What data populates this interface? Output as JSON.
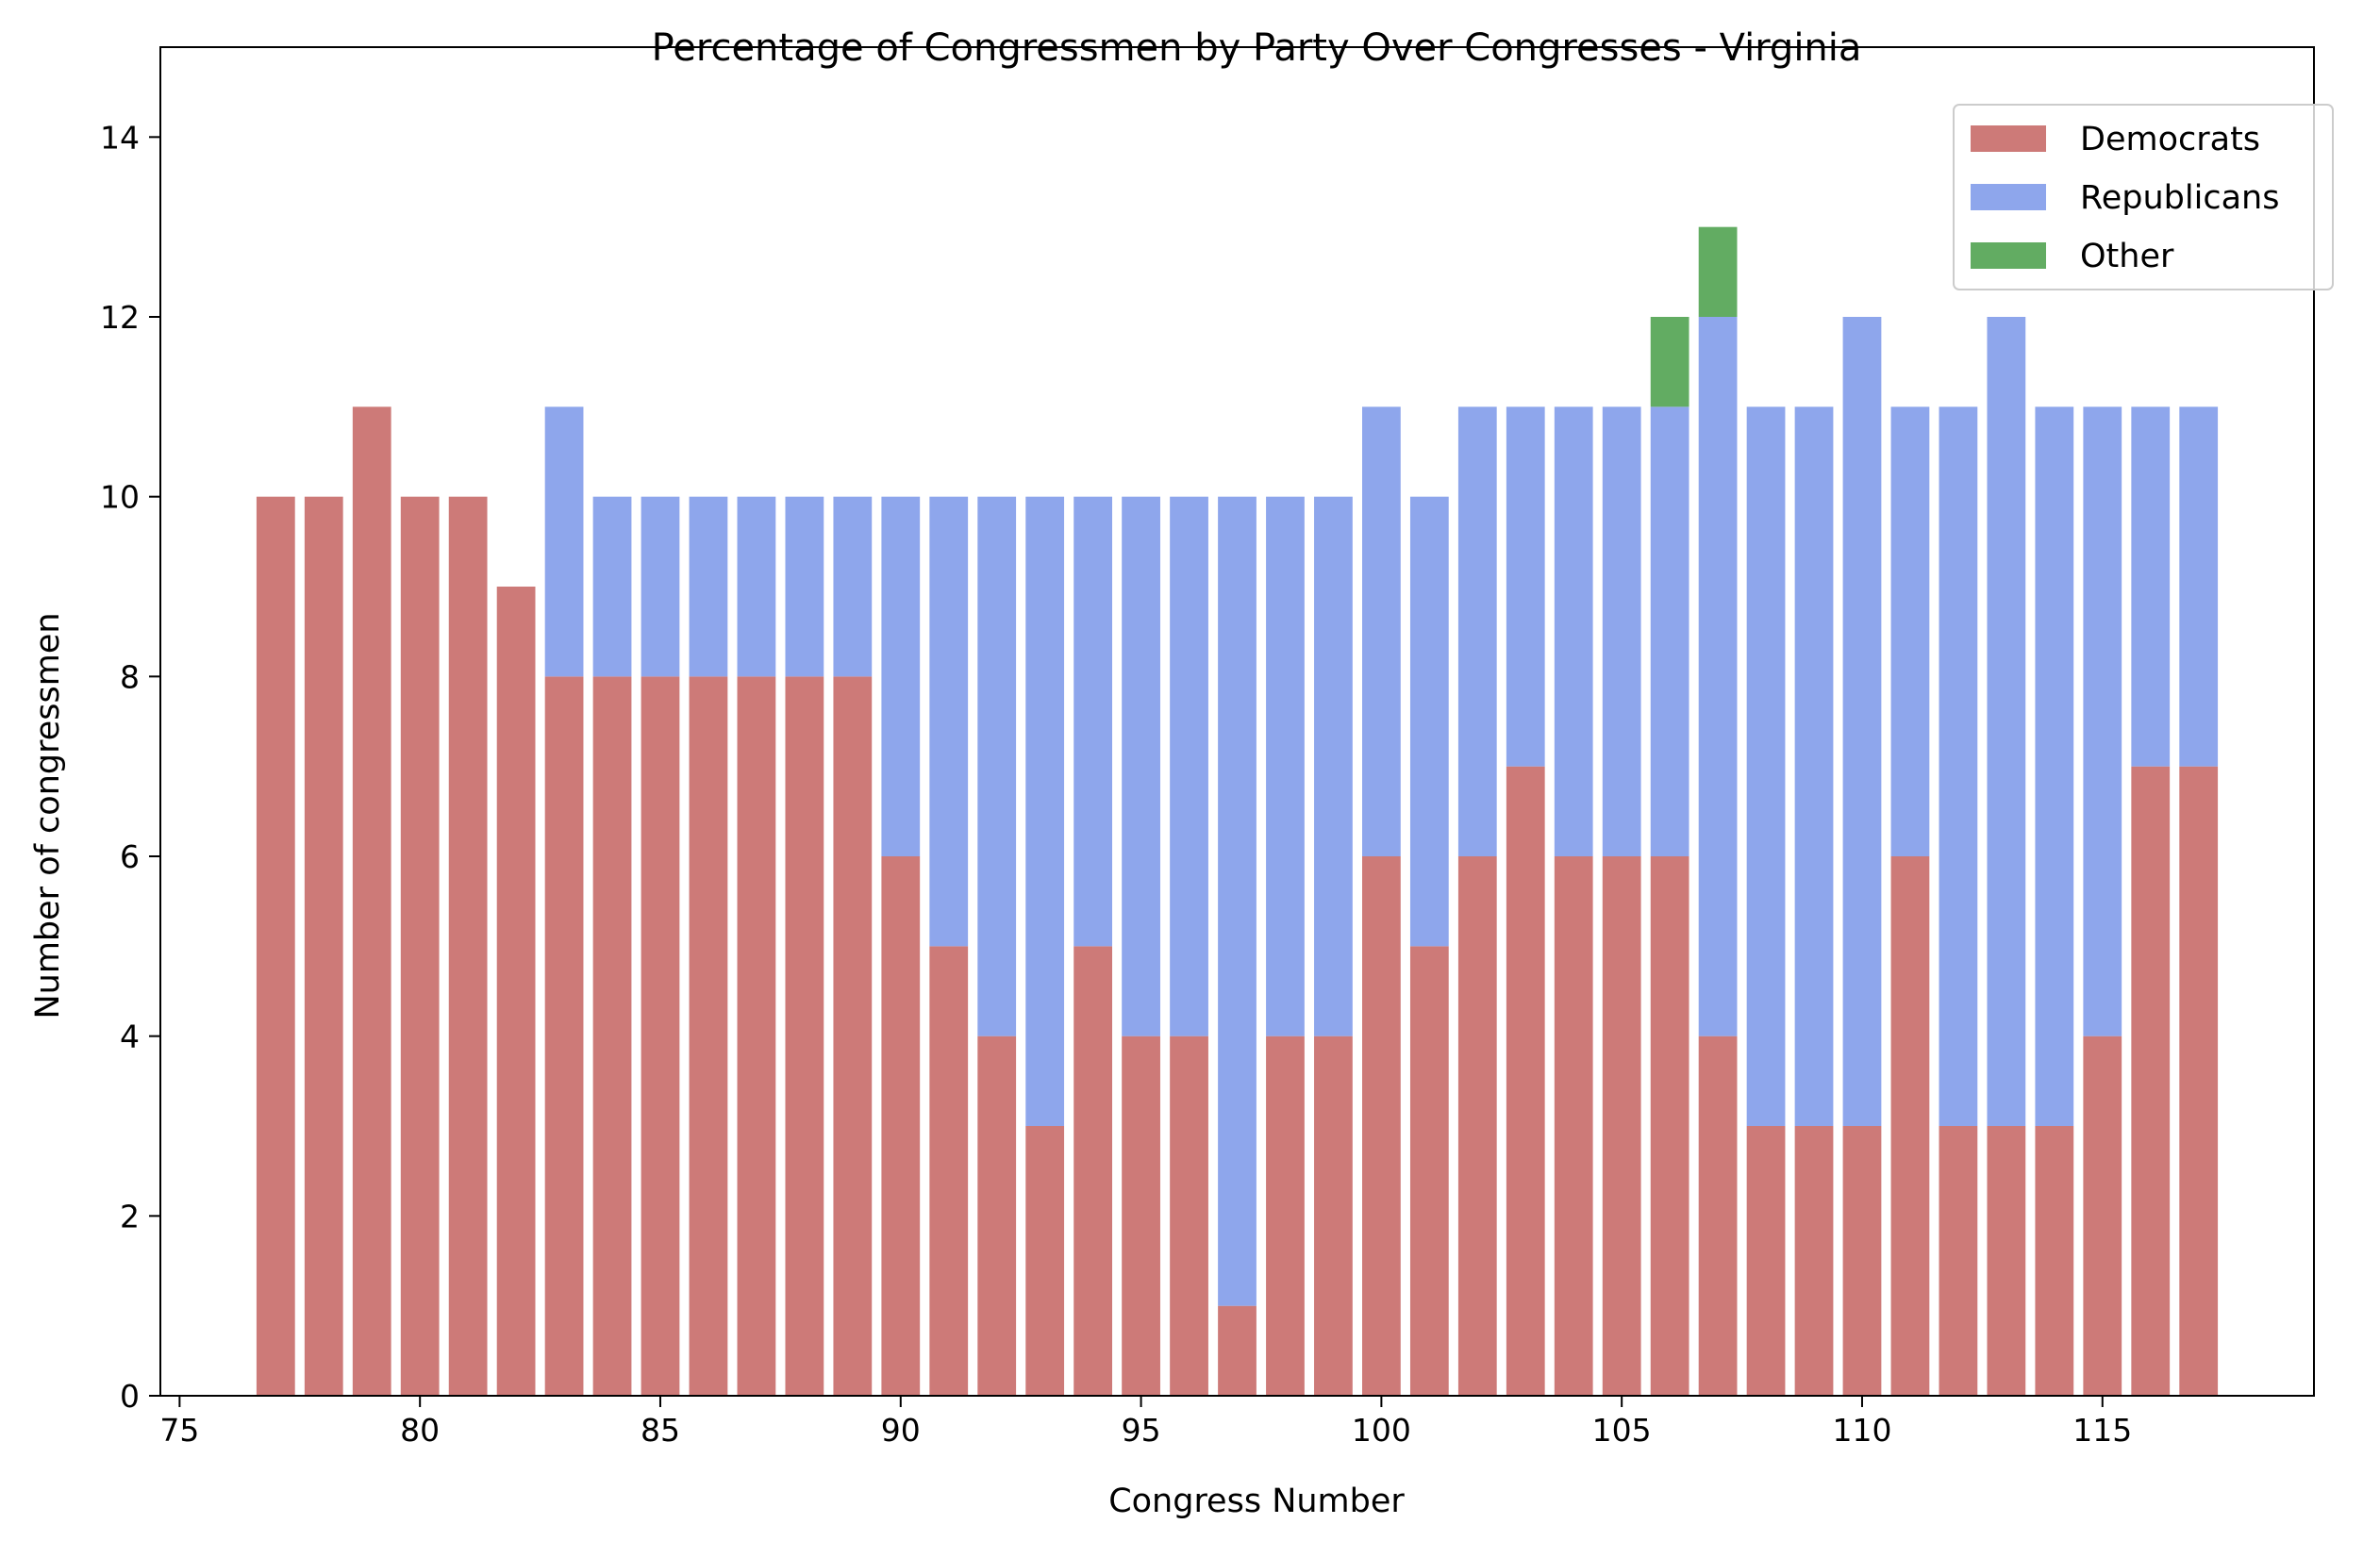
{
  "chart_data": {
    "type": "bar",
    "stacked": true,
    "title": "Percentage of Congressmen by Party Over Congresses - Virginia",
    "xlabel": "Congress Number",
    "ylabel": "Number of congressmen",
    "xlim": [
      74.6,
      119.4
    ],
    "ylim": [
      0,
      15
    ],
    "xticks": [
      75,
      80,
      85,
      90,
      95,
      100,
      105,
      110,
      115
    ],
    "yticks": [
      0,
      2,
      4,
      6,
      8,
      10,
      12,
      14
    ],
    "grid": false,
    "legend_position": "top-right",
    "x": [
      77,
      78,
      79,
      80,
      81,
      82,
      83,
      84,
      85,
      86,
      87,
      88,
      89,
      90,
      91,
      92,
      93,
      94,
      95,
      96,
      97,
      98,
      99,
      100,
      101,
      102,
      103,
      104,
      105,
      106,
      107,
      108,
      109,
      110,
      111,
      112,
      113,
      114,
      115,
      116,
      117
    ],
    "series": [
      {
        "name": "Democrats",
        "color": "#cd7a78",
        "values": [
          10,
          10,
          11,
          10,
          10,
          9,
          8,
          8,
          8,
          8,
          8,
          8,
          8,
          6,
          5,
          4,
          3,
          5,
          4,
          4,
          1,
          4,
          4,
          6,
          5,
          6,
          7,
          6,
          6,
          6,
          4,
          3,
          3,
          3,
          6,
          3,
          3,
          3,
          4,
          7,
          7
        ]
      },
      {
        "name": "Republicans",
        "color": "#8ea6ec",
        "values": [
          0,
          0,
          0,
          0,
          0,
          0,
          3,
          2,
          2,
          2,
          2,
          2,
          2,
          4,
          5,
          6,
          7,
          5,
          6,
          6,
          9,
          6,
          6,
          5,
          5,
          5,
          4,
          5,
          5,
          5,
          8,
          8,
          8,
          9,
          5,
          8,
          9,
          8,
          7,
          4,
          4
        ]
      },
      {
        "name": "Other",
        "color": "#62ac62",
        "values": [
          0,
          0,
          0,
          0,
          0,
          0,
          0,
          0,
          0,
          0,
          0,
          0,
          0,
          0,
          0,
          0,
          0,
          0,
          0,
          0,
          0,
          0,
          0,
          0,
          0,
          0,
          0,
          0,
          0,
          1,
          1,
          0,
          0,
          0,
          0,
          0,
          0,
          0,
          0,
          0,
          0
        ]
      }
    ]
  }
}
